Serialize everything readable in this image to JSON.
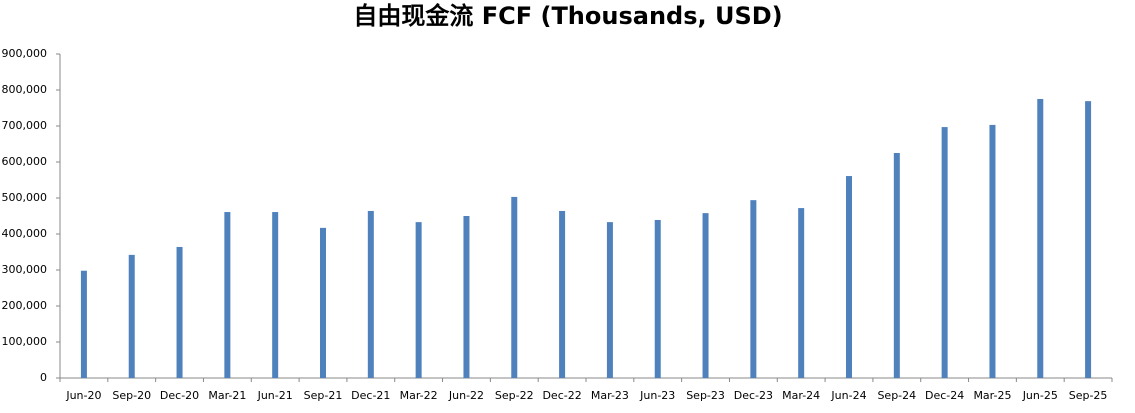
{
  "chart_data": {
    "type": "bar",
    "title": "自由现金流 FCF (Thousands, USD)",
    "categories": [
      "Jun-20",
      "Sep-20",
      "Dec-20",
      "Mar-21",
      "Jun-21",
      "Sep-21",
      "Dec-21",
      "Mar-22",
      "Jun-22",
      "Sep-22",
      "Dec-22",
      "Mar-23",
      "Jun-23",
      "Sep-23",
      "Dec-23",
      "Mar-24",
      "Jun-24",
      "Sep-24",
      "Dec-24",
      "Mar-25",
      "Jun-25",
      "Sep-25"
    ],
    "values": [
      298000,
      342000,
      364000,
      461000,
      461000,
      417000,
      464000,
      433000,
      450000,
      503000,
      464000,
      433000,
      439000,
      458000,
      494000,
      472000,
      561000,
      625000,
      697000,
      703000,
      775000,
      769000
    ],
    "color": "#4f81bd",
    "ylim": [
      0,
      900000
    ],
    "yticks": [
      0,
      {
        "value": 100000,
        "label": "100,000"
      },
      {
        "value": 200000,
        "label": "200,000"
      },
      {
        "value": 300000,
        "label": "300,000"
      },
      {
        "value": 400000,
        "label": "400,000"
      },
      {
        "value": 500000,
        "label": "500,000"
      },
      {
        "value": 600000,
        "label": "600,000"
      },
      {
        "value": 700000,
        "label": "700,000"
      },
      {
        "value": 800000,
        "label": "800,000"
      },
      {
        "value": 900000,
        "label": "900,000"
      }
    ]
  }
}
